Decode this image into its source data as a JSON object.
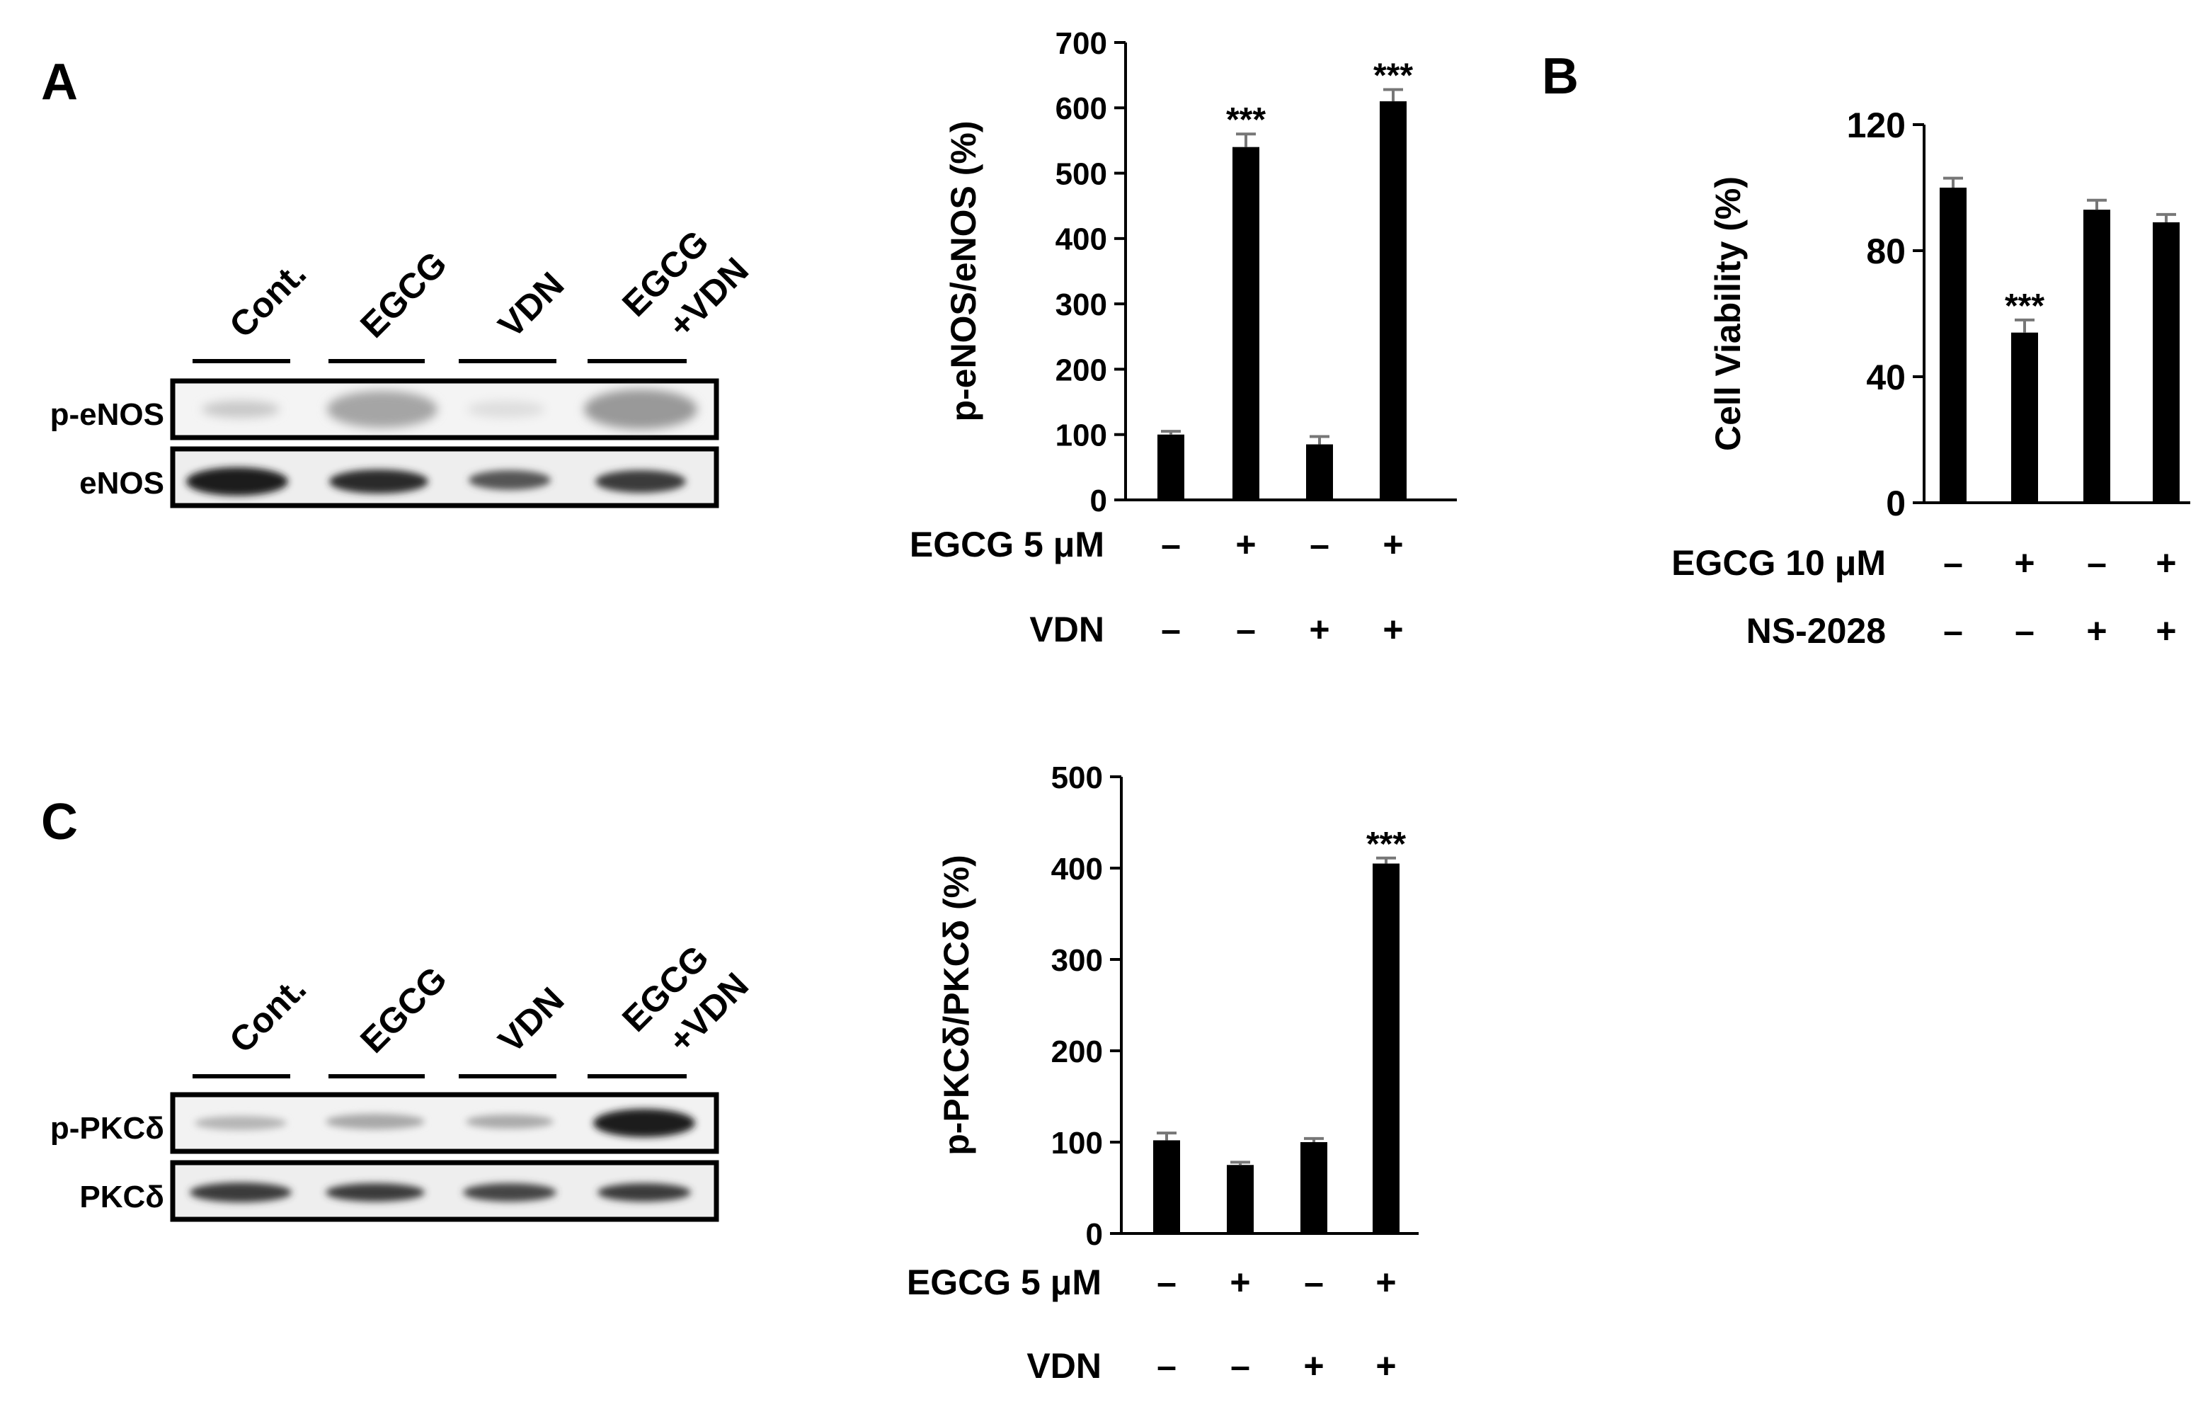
{
  "panel_labels": {
    "a": "A",
    "b": "B",
    "c": "C"
  },
  "blot_a": {
    "lanes": [
      "Cont.",
      "EGCG",
      "VDN",
      "EGCG",
      "+VDN"
    ],
    "rows": [
      "p-eNOS",
      "eNOS"
    ]
  },
  "blot_c": {
    "lanes": [
      "Cont.",
      "EGCG",
      "VDN",
      "EGCG",
      "+VDN"
    ],
    "rows": [
      "p-PKCδ",
      "PKCδ"
    ]
  },
  "chart_data": [
    {
      "type": "bar",
      "ylabel": "p-eNOS/eNOS (%)",
      "ylim": [
        0,
        700
      ],
      "yticks": [
        0,
        100,
        200,
        300,
        400,
        500,
        600,
        700
      ],
      "values": [
        100,
        540,
        85,
        610
      ],
      "errors": [
        5,
        20,
        12,
        18
      ],
      "annotations": [
        "",
        "***",
        "",
        "***"
      ],
      "treatments": [
        {
          "label": "EGCG 5 μM",
          "signs": [
            "–",
            "+",
            "–",
            "+"
          ]
        },
        {
          "label": "VDN",
          "signs": [
            "–",
            "–",
            "+",
            "+"
          ]
        }
      ],
      "bar_color": "#000000"
    },
    {
      "type": "bar",
      "ylabel": "Cell Viability  (%)",
      "ylim": [
        0,
        120
      ],
      "yticks": [
        0,
        40,
        80,
        120
      ],
      "values": [
        100,
        54,
        93,
        89
      ],
      "errors": [
        3,
        4,
        3,
        2.5
      ],
      "annotations": [
        "",
        "***",
        "",
        ""
      ],
      "treatments": [
        {
          "label": "EGCG 10 μM",
          "signs": [
            "–",
            "+",
            "–",
            "+"
          ]
        },
        {
          "label": "NS-2028",
          "signs": [
            "–",
            "–",
            "+",
            "+"
          ]
        }
      ],
      "bar_color": "#000000"
    },
    {
      "type": "bar",
      "ylabel": "p-PKCδ/PKCδ (%)",
      "ylim": [
        0,
        500
      ],
      "yticks": [
        0,
        100,
        200,
        300,
        400,
        500
      ],
      "values": [
        102,
        75,
        100,
        405
      ],
      "errors": [
        8,
        3,
        4,
        6
      ],
      "annotations": [
        "",
        "",
        "",
        "***"
      ],
      "treatments": [
        {
          "label": "EGCG 5 μM",
          "signs": [
            "–",
            "+",
            "–",
            "+"
          ]
        },
        {
          "label": "VDN",
          "signs": [
            "–",
            "–",
            "+",
            "+"
          ]
        }
      ],
      "bar_color": "#000000"
    }
  ]
}
